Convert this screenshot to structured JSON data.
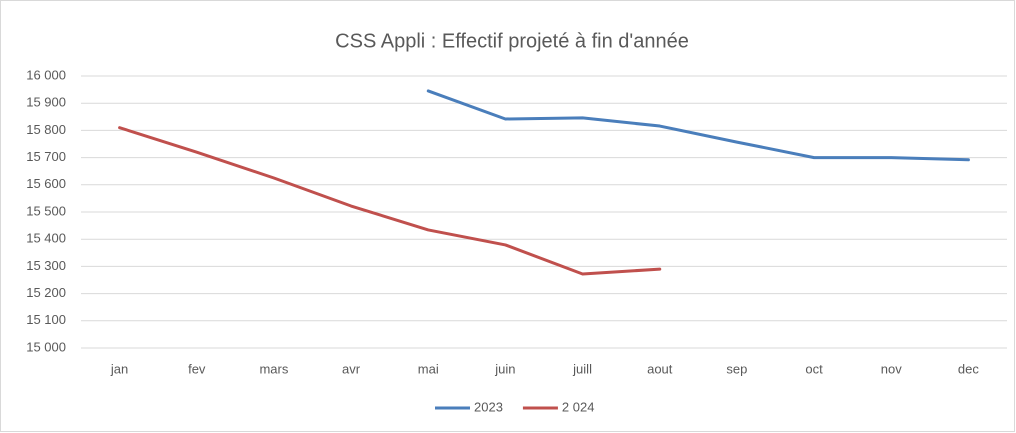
{
  "chart_data": {
    "type": "line",
    "title": "CSS Appli : Effectif projeté à fin d'année",
    "categories": [
      "jan",
      "fev",
      "mars",
      "avr",
      "mai",
      "juin",
      "juill",
      "aout",
      "sep",
      "oct",
      "nov",
      "dec"
    ],
    "series": [
      {
        "name": "2023",
        "color": "#4a7ebb",
        "values": [
          null,
          null,
          null,
          null,
          15945,
          15842,
          15846,
          15816,
          15757,
          15700,
          15700,
          15692
        ]
      },
      {
        "name": "2 024",
        "color": "#c0504d",
        "values": [
          15810,
          15720,
          15625,
          15522,
          15434,
          15379,
          15272,
          15290,
          null,
          null,
          null,
          null
        ]
      }
    ],
    "ylim": [
      15000,
      16000
    ],
    "yticks": [
      {
        "value": 15000,
        "label": "15 000"
      },
      {
        "value": 15100,
        "label": "15 100"
      },
      {
        "value": 15200,
        "label": "15 200"
      },
      {
        "value": 15300,
        "label": "15 300"
      },
      {
        "value": 15400,
        "label": "15 400"
      },
      {
        "value": 15500,
        "label": "15 500"
      },
      {
        "value": 15600,
        "label": "15 600"
      },
      {
        "value": 15700,
        "label": "15 700"
      },
      {
        "value": 15800,
        "label": "15 800"
      },
      {
        "value": 15900,
        "label": "15 900"
      },
      {
        "value": 16000,
        "label": "16 000"
      }
    ],
    "grid": true,
    "legend": "bottom"
  }
}
